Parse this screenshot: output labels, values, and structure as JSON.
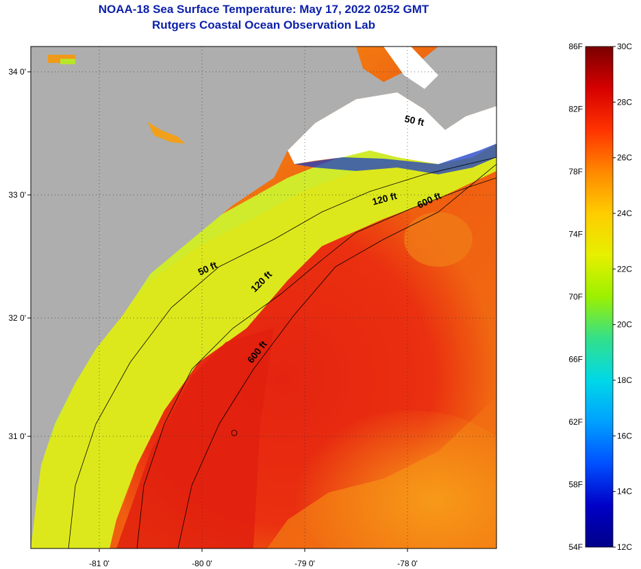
{
  "title": "NOAA-18 Sea Surface Temperature:  May 17, 2022 0252 GMT",
  "subtitle": "Rutgers Coastal Ocean Observation Lab",
  "map": {
    "lon_labels": [
      "-81 0'",
      "-80 0'",
      "-79 0'",
      "-78 0'"
    ],
    "lat_labels": [
      "34 0'",
      "33 0'",
      "32 0'",
      "31 0'"
    ],
    "contours": [
      "50 ft",
      "120 ft",
      "600 ft",
      "50 ft",
      "120 ft",
      "600 ft"
    ],
    "colors": {
      "land": "#aeaeae",
      "cloud": "#ffffff",
      "warm": "#e8260c",
      "mid": "#f58a0a",
      "shelf": "#d9ea1a"
    }
  },
  "colorbar": {
    "fahrenheit": [
      "86F",
      "82F",
      "78F",
      "74F",
      "70F",
      "66F",
      "62F",
      "58F",
      "54F"
    ],
    "celsius": [
      "30C",
      "28C",
      "26C",
      "24C",
      "22C",
      "20C",
      "18C",
      "16C",
      "14C",
      "12C"
    ],
    "colors": [
      "#7a0000",
      "#d50000",
      "#ff3300",
      "#ff8800",
      "#ffcc00",
      "#e6f000",
      "#9cf000",
      "#33e08a",
      "#00d8e8",
      "#00a0ff",
      "#0050ff",
      "#0000c8",
      "#000088"
    ]
  }
}
